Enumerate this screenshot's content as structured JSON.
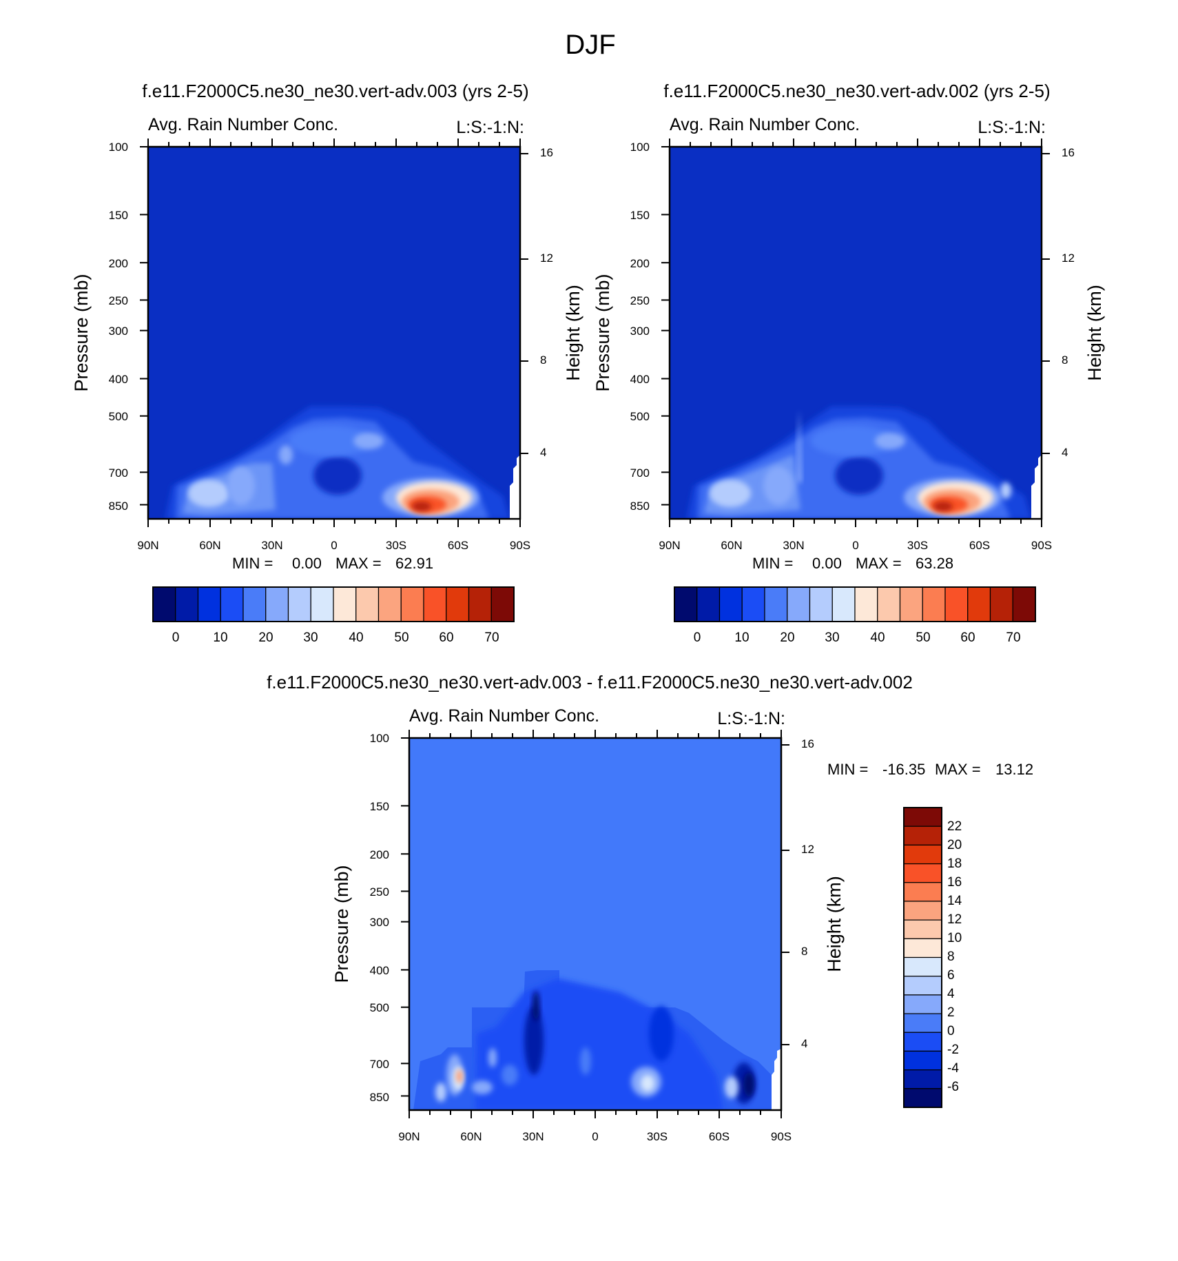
{
  "figure_title": "DJF",
  "colors": {
    "abs_levels": [
      "#000a6e",
      "#001ba8",
      "#0031df",
      "#1b4df5",
      "#4a7cf8",
      "#86a9fb",
      "#b4ccfd",
      "#d8e8fc",
      "#fde8d8",
      "#fcc9ad",
      "#fba47f",
      "#fb7d51",
      "#f95228",
      "#e13a0c",
      "#b52207",
      "#7d0a06"
    ],
    "diff_levels": [
      "#000a6e",
      "#001ba8",
      "#0031df",
      "#1b4df5",
      "#4a7cf8",
      "#86a9fb",
      "#b4ccfd",
      "#d8e8fc",
      "#fde8d8",
      "#fcc9ad",
      "#fba47f",
      "#fb7d51",
      "#f95228",
      "#e13a0c",
      "#b52207",
      "#7d0a06"
    ]
  },
  "chart_data": [
    {
      "type": "heatmap",
      "title": "f.e11.F2000C5.ne30_ne30.vert-adv.003 (yrs 2-5)",
      "subtitle_left": "Avg. Rain Number Conc.",
      "subtitle_right": "L:S:-1:N:",
      "ylabel": "Pressure (mb)",
      "y2label": "Height (km)",
      "x_ticks": [
        "90N",
        "60N",
        "30N",
        "0",
        "30S",
        "60S",
        "90S"
      ],
      "y_ticks": [
        "100",
        "150",
        "200",
        "250",
        "300",
        "400",
        "500",
        "700",
        "850"
      ],
      "y2_ticks": [
        "16",
        "12",
        "8",
        "4"
      ],
      "stats": {
        "min_label": "MIN =",
        "min": "0.00",
        "max_label": "MAX =",
        "max": "62.91"
      },
      "colorbar_labels": [
        "0",
        "10",
        "20",
        "30",
        "40",
        "50",
        "60",
        "70"
      ],
      "colormap": "blue-white-red",
      "features": [
        {
          "lat_deg": 40,
          "p_mb": 840,
          "value": 62.91
        }
      ]
    },
    {
      "type": "heatmap",
      "title": "f.e11.F2000C5.ne30_ne30.vert-adv.002 (yrs 2-5)",
      "subtitle_left": "Avg. Rain Number Conc.",
      "subtitle_right": "L:S:-1:N:",
      "ylabel": "Pressure (mb)",
      "y2label": "Height (km)",
      "x_ticks": [
        "90N",
        "60N",
        "30N",
        "0",
        "30S",
        "60S",
        "90S"
      ],
      "y_ticks": [
        "100",
        "150",
        "200",
        "250",
        "300",
        "400",
        "500",
        "700",
        "850"
      ],
      "y2_ticks": [
        "16",
        "12",
        "8",
        "4"
      ],
      "stats": {
        "min_label": "MIN =",
        "min": "0.00",
        "max_label": "MAX =",
        "max": "63.28"
      },
      "colorbar_labels": [
        "0",
        "10",
        "20",
        "30",
        "40",
        "50",
        "60",
        "70"
      ],
      "colormap": "blue-white-red",
      "features": [
        {
          "lat_deg": 40,
          "p_mb": 840,
          "value": 63.28
        }
      ]
    },
    {
      "type": "heatmap",
      "title": "f.e11.F2000C5.ne30_ne30.vert-adv.003 - f.e11.F2000C5.ne30_ne30.vert-adv.002",
      "subtitle_left": "Avg. Rain Number Conc.",
      "subtitle_right": "L:S:-1:N:",
      "ylabel": "Pressure (mb)",
      "y2label": "Height (km)",
      "x_ticks": [
        "90N",
        "60N",
        "30N",
        "0",
        "30S",
        "60S",
        "90S"
      ],
      "y_ticks": [
        "100",
        "150",
        "200",
        "250",
        "300",
        "400",
        "500",
        "700",
        "850"
      ],
      "y2_ticks": [
        "16",
        "12",
        "8",
        "4"
      ],
      "stats": {
        "min_label": "MIN =",
        "min": "-16.35",
        "max_label": "MAX =",
        "max": "13.12"
      },
      "colorbar_labels": [
        "22",
        "20",
        "18",
        "16",
        "14",
        "12",
        "10",
        "8",
        "6",
        "4",
        "2",
        "0",
        "-2",
        "-4",
        "-6"
      ],
      "colormap": "blue-white-red"
    }
  ]
}
